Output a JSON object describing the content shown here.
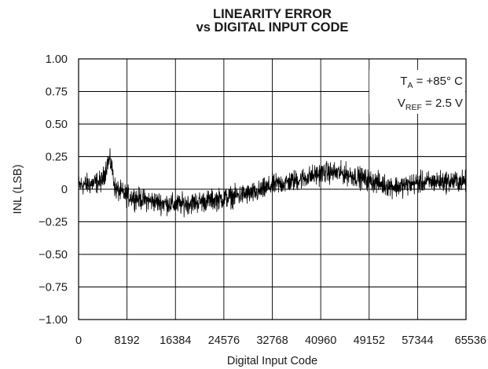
{
  "chart_data": {
    "type": "line",
    "title": "LINEARITY ERROR",
    "subtitle": "vs DIGITAL INPUT CODE",
    "xlabel": "Digital Input Code",
    "ylabel": "INL (LSB)",
    "xlim": [
      0,
      65536
    ],
    "ylim": [
      -1.0,
      1.0
    ],
    "x_ticks": [
      0,
      8192,
      16384,
      24576,
      32768,
      40960,
      49152,
      57344,
      65536
    ],
    "x_tick_labels": [
      "0",
      "8192",
      "16384",
      "24576",
      "32768",
      "40960",
      "49152",
      "57344",
      "65536"
    ],
    "y_ticks": [
      1.0,
      0.75,
      0.5,
      0.25,
      0,
      -0.25,
      -0.5,
      -0.75,
      -1.0
    ],
    "y_tick_labels": [
      "1.00",
      "0.75",
      "0.50",
      "0.25",
      "0",
      "−0.25",
      "−0.50",
      "−0.75",
      "−1.00"
    ],
    "grid": true,
    "annotations": {
      "ta_label": "T",
      "ta_sub": "A",
      "ta_value": " = +85° C",
      "vref_label": "V",
      "vref_sub": "REF",
      "vref_value": " = 2.5 V"
    },
    "series": [
      {
        "color": "#000000",
        "trend_x": [
          0,
          2000,
          4000,
          5000,
          5500,
          6200,
          8192,
          12000,
          16384,
          20000,
          24576,
          28000,
          30000,
          32768,
          36000,
          40960,
          42000,
          45000,
          49152,
          52000,
          54000,
          57344,
          61000,
          65536
        ],
        "trend_y": [
          0.03,
          0.04,
          0.06,
          0.22,
          0.2,
          0.0,
          -0.05,
          -0.09,
          -0.12,
          -0.1,
          -0.07,
          -0.04,
          -0.03,
          0.03,
          0.06,
          0.12,
          0.13,
          0.12,
          0.07,
          0.03,
          0.02,
          0.05,
          0.06,
          0.06
        ],
        "noise_amplitude": 0.1,
        "samples": 1800
      }
    ]
  }
}
